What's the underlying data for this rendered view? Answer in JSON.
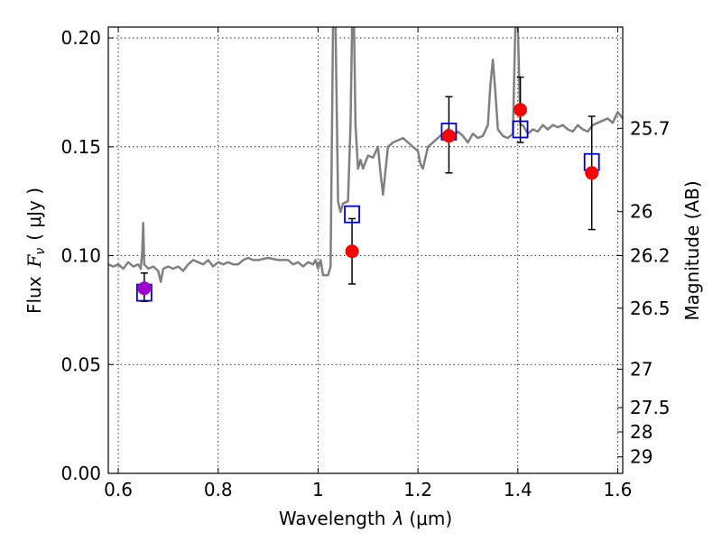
{
  "chart_data": {
    "type": "scatter",
    "xlabel_text": "Wavelength",
    "xlabel_symbol": "λ",
    "xlabel_unit": "(μm)",
    "ylabel_text": "Flux",
    "ylabel_symbol": "F",
    "ylabel_sub": "ν",
    "ylabel_unit": "( μJy )",
    "y2label": "Magnitude (AB)",
    "xlim": [
      0.58,
      1.61
    ],
    "ylim": [
      0.0,
      0.205
    ],
    "grid": true,
    "x_ticks": [
      {
        "v": 0.6,
        "label": "0.6"
      },
      {
        "v": 0.8,
        "label": "0.8"
      },
      {
        "v": 1.0,
        "label": "1"
      },
      {
        "v": 1.2,
        "label": "1.2"
      },
      {
        "v": 1.4,
        "label": "1.4"
      },
      {
        "v": 1.6,
        "label": "1.6"
      }
    ],
    "y_ticks": [
      {
        "v": 0.0,
        "label": "0.00"
      },
      {
        "v": 0.05,
        "label": "0.05"
      },
      {
        "v": 0.1,
        "label": "0.10"
      },
      {
        "v": 0.15,
        "label": "0.15"
      },
      {
        "v": 0.2,
        "label": "0.20"
      }
    ],
    "mag_ticks": [
      {
        "v": 25.7,
        "label": "25.7"
      },
      {
        "v": 26.0,
        "label": "26"
      },
      {
        "v": 26.2,
        "label": "26.2"
      },
      {
        "v": 26.5,
        "label": "26.5"
      },
      {
        "v": 27.0,
        "label": "27"
      },
      {
        "v": 27.5,
        "label": "27.5"
      },
      {
        "v": 28.0,
        "label": "28"
      },
      {
        "v": 29.0,
        "label": "29"
      }
    ],
    "mag_zero_point_njy": 31.2,
    "series": [
      {
        "kind": "line",
        "color": "#808080",
        "points": [
          [
            0.58,
            0.096
          ],
          [
            0.59,
            0.095
          ],
          [
            0.6,
            0.096
          ],
          [
            0.61,
            0.094
          ],
          [
            0.62,
            0.097
          ],
          [
            0.63,
            0.095
          ],
          [
            0.64,
            0.096
          ],
          [
            0.645,
            0.094
          ],
          [
            0.648,
            0.102
          ],
          [
            0.65,
            0.115
          ],
          [
            0.652,
            0.096
          ],
          [
            0.66,
            0.094
          ],
          [
            0.67,
            0.095
          ],
          [
            0.68,
            0.093
          ],
          [
            0.685,
            0.088
          ],
          [
            0.69,
            0.094
          ],
          [
            0.7,
            0.095
          ],
          [
            0.71,
            0.094
          ],
          [
            0.72,
            0.095
          ],
          [
            0.73,
            0.093
          ],
          [
            0.74,
            0.096
          ],
          [
            0.75,
            0.098
          ],
          [
            0.76,
            0.097
          ],
          [
            0.77,
            0.096
          ],
          [
            0.78,
            0.098
          ],
          [
            0.79,
            0.095
          ],
          [
            0.8,
            0.097
          ],
          [
            0.81,
            0.096
          ],
          [
            0.82,
            0.097
          ],
          [
            0.83,
            0.096
          ],
          [
            0.84,
            0.096
          ],
          [
            0.85,
            0.098
          ],
          [
            0.86,
            0.099
          ],
          [
            0.87,
            0.098
          ],
          [
            0.88,
            0.098
          ],
          [
            0.9,
            0.099
          ],
          [
            0.92,
            0.098
          ],
          [
            0.94,
            0.098
          ],
          [
            0.95,
            0.096
          ],
          [
            0.96,
            0.097
          ],
          [
            0.97,
            0.095
          ],
          [
            0.98,
            0.097
          ],
          [
            0.99,
            0.096
          ],
          [
            0.995,
            0.098
          ],
          [
            1.0,
            0.094
          ],
          [
            1.005,
            0.098
          ],
          [
            1.01,
            0.091
          ],
          [
            1.02,
            0.091
          ],
          [
            1.025,
            0.095
          ],
          [
            1.03,
            0.205
          ],
          [
            1.035,
            0.205
          ],
          [
            1.04,
            0.125
          ],
          [
            1.045,
            0.12
          ],
          [
            1.05,
            0.124
          ],
          [
            1.06,
            0.125
          ],
          [
            1.065,
            0.16
          ],
          [
            1.068,
            0.205
          ],
          [
            1.072,
            0.205
          ],
          [
            1.075,
            0.16
          ],
          [
            1.08,
            0.14
          ],
          [
            1.085,
            0.144
          ],
          [
            1.09,
            0.14
          ],
          [
            1.1,
            0.146
          ],
          [
            1.11,
            0.145
          ],
          [
            1.12,
            0.15
          ],
          [
            1.125,
            0.138
          ],
          [
            1.13,
            0.128
          ],
          [
            1.14,
            0.15
          ],
          [
            1.15,
            0.152
          ],
          [
            1.16,
            0.153
          ],
          [
            1.17,
            0.154
          ],
          [
            1.18,
            0.152
          ],
          [
            1.19,
            0.15
          ],
          [
            1.2,
            0.148
          ],
          [
            1.205,
            0.142
          ],
          [
            1.21,
            0.14
          ],
          [
            1.22,
            0.15
          ],
          [
            1.23,
            0.152
          ],
          [
            1.24,
            0.154
          ],
          [
            1.25,
            0.156
          ],
          [
            1.26,
            0.158
          ],
          [
            1.27,
            0.155
          ],
          [
            1.28,
            0.157
          ],
          [
            1.29,
            0.155
          ],
          [
            1.3,
            0.152
          ],
          [
            1.31,
            0.156
          ],
          [
            1.32,
            0.154
          ],
          [
            1.33,
            0.155
          ],
          [
            1.34,
            0.16
          ],
          [
            1.345,
            0.178
          ],
          [
            1.35,
            0.19
          ],
          [
            1.355,
            0.175
          ],
          [
            1.36,
            0.158
          ],
          [
            1.37,
            0.155
          ],
          [
            1.38,
            0.154
          ],
          [
            1.39,
            0.156
          ],
          [
            1.395,
            0.205
          ],
          [
            1.4,
            0.205
          ],
          [
            1.405,
            0.16
          ],
          [
            1.41,
            0.16
          ],
          [
            1.42,
            0.156
          ],
          [
            1.43,
            0.158
          ],
          [
            1.44,
            0.157
          ],
          [
            1.45,
            0.16
          ],
          [
            1.46,
            0.158
          ],
          [
            1.47,
            0.16
          ],
          [
            1.48,
            0.159
          ],
          [
            1.49,
            0.16
          ],
          [
            1.5,
            0.158
          ],
          [
            1.51,
            0.157
          ],
          [
            1.52,
            0.16
          ],
          [
            1.53,
            0.158
          ],
          [
            1.54,
            0.157
          ],
          [
            1.55,
            0.16
          ],
          [
            1.56,
            0.161
          ],
          [
            1.57,
            0.162
          ],
          [
            1.58,
            0.163
          ],
          [
            1.59,
            0.161
          ],
          [
            1.6,
            0.166
          ],
          [
            1.61,
            0.163
          ]
        ]
      },
      {
        "kind": "markers",
        "marker": "square",
        "color": "#0000cc",
        "points": [
          [
            0.652,
            0.083
          ],
          [
            1.068,
            0.119
          ],
          [
            1.262,
            0.157
          ],
          [
            1.405,
            0.158
          ],
          [
            1.548,
            0.143
          ]
        ]
      },
      {
        "kind": "markers",
        "marker": "circle",
        "color": "#ff0000",
        "points": [
          {
            "x": 0.652,
            "y": 0.085,
            "lo": 0.079,
            "hi": 0.092
          },
          {
            "x": 1.068,
            "y": 0.102,
            "lo": 0.087,
            "hi": 0.117
          },
          {
            "x": 1.262,
            "y": 0.155,
            "lo": 0.138,
            "hi": 0.173
          },
          {
            "x": 1.405,
            "y": 0.167,
            "lo": 0.152,
            "hi": 0.182
          },
          {
            "x": 1.548,
            "y": 0.138,
            "lo": 0.112,
            "hi": 0.164
          }
        ]
      }
    ],
    "first_point_color": "#a000c8"
  }
}
